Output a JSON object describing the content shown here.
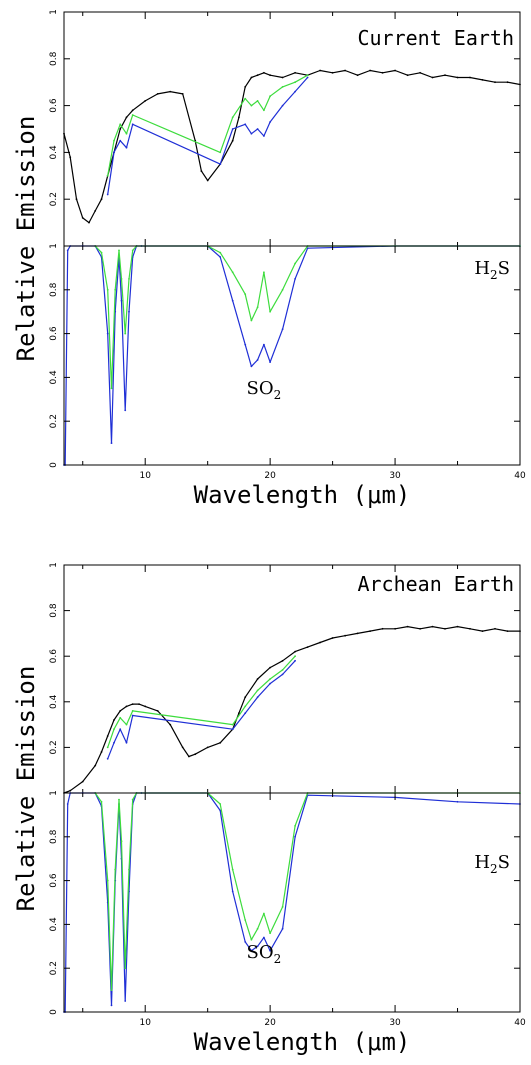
{
  "colors": {
    "black": "#000000",
    "blue": "#1f2fd6",
    "green": "#3ddc3d"
  },
  "chart_data": [
    {
      "type": "line",
      "title": "Current Earth",
      "panels": [
        {
          "role": "emission",
          "ylim": [
            0,
            1
          ],
          "yticks": [
            "0",
            "0.2",
            "0.4",
            "0.6",
            "0.8",
            "1"
          ],
          "series": [
            {
              "color": "black",
              "x": [
                3.5,
                4,
                4.5,
                5,
                5.5,
                6,
                6.5,
                7,
                7.5,
                8,
                8.5,
                9,
                10,
                11,
                12,
                13,
                14,
                14.5,
                15,
                16,
                17,
                17.5,
                18,
                18.5,
                19,
                19.5,
                20,
                21,
                22,
                23,
                24,
                25,
                26,
                27,
                28,
                29,
                30,
                31,
                32,
                33,
                34,
                35,
                36,
                37,
                38,
                39,
                40
              ],
              "y": [
                0.48,
                0.38,
                0.2,
                0.12,
                0.1,
                0.15,
                0.2,
                0.3,
                0.4,
                0.5,
                0.55,
                0.58,
                0.62,
                0.65,
                0.66,
                0.65,
                0.45,
                0.32,
                0.28,
                0.35,
                0.45,
                0.55,
                0.68,
                0.72,
                0.73,
                0.74,
                0.73,
                0.72,
                0.74,
                0.73,
                0.75,
                0.74,
                0.75,
                0.73,
                0.75,
                0.74,
                0.75,
                0.73,
                0.74,
                0.72,
                0.73,
                0.72,
                0.72,
                0.71,
                0.7,
                0.7,
                0.69
              ]
            },
            {
              "color": "green",
              "x": [
                7,
                7.5,
                8,
                8.5,
                9,
                16,
                17,
                18,
                18.5,
                19,
                19.5,
                20,
                21,
                22,
                23
              ],
              "y": [
                0.3,
                0.45,
                0.52,
                0.48,
                0.56,
                0.4,
                0.55,
                0.63,
                0.6,
                0.62,
                0.58,
                0.64,
                0.68,
                0.7,
                0.73
              ]
            },
            {
              "color": "blue",
              "x": [
                7,
                7.5,
                8,
                8.5,
                9,
                16,
                17,
                18,
                18.5,
                19,
                19.5,
                20,
                21,
                22,
                23
              ],
              "y": [
                0.22,
                0.4,
                0.45,
                0.42,
                0.52,
                0.35,
                0.5,
                0.52,
                0.48,
                0.5,
                0.47,
                0.53,
                0.6,
                0.66,
                0.72
              ]
            }
          ]
        },
        {
          "role": "transmission",
          "ylim": [
            0,
            1
          ],
          "yticks": [
            "0",
            "0.2",
            "0.4",
            "0.6",
            "0.8",
            "1"
          ],
          "series": [
            {
              "color": "blue",
              "x": [
                3.5,
                3.6,
                3.8,
                4,
                5,
                6,
                6.5,
                7,
                7.3,
                7.6,
                7.9,
                8.1,
                8.4,
                8.7,
                9,
                9.3,
                9.7,
                15,
                16,
                17,
                18,
                18.5,
                19,
                19.5,
                20,
                21,
                22,
                23,
                30,
                40
              ],
              "y": [
                0,
                0.0,
                0.98,
                1.0,
                1.0,
                1.0,
                0.95,
                0.6,
                0.1,
                0.7,
                0.95,
                0.75,
                0.25,
                0.7,
                0.95,
                1.0,
                1.0,
                1.0,
                0.95,
                0.75,
                0.55,
                0.45,
                0.48,
                0.55,
                0.47,
                0.62,
                0.85,
                0.99,
                1.0,
                1.0
              ]
            },
            {
              "color": "green",
              "x": [
                6,
                6.5,
                7,
                7.3,
                7.6,
                7.9,
                8.1,
                8.4,
                8.7,
                9,
                9.3,
                15,
                16,
                17,
                18,
                18.5,
                19,
                19.5,
                20,
                21,
                22,
                23,
                30,
                40
              ],
              "y": [
                1.0,
                0.97,
                0.8,
                0.35,
                0.8,
                0.98,
                0.85,
                0.6,
                0.85,
                0.98,
                1.0,
                1.0,
                0.97,
                0.88,
                0.78,
                0.66,
                0.72,
                0.88,
                0.7,
                0.8,
                0.92,
                1.0,
                1.0,
                1.0
              ]
            }
          ]
        }
      ],
      "labels": {
        "top_right": "Current Earth",
        "h2s": "H",
        "h2s_sub": "2",
        "h2s_tail": "S",
        "so2": "SO",
        "so2_sub": "2"
      },
      "xlabel": "Wavelength (μm)",
      "xticks": [
        "10",
        "20",
        "30",
        "40"
      ],
      "xlim": [
        3.5,
        40
      ]
    },
    {
      "type": "line",
      "title": "Archean Earth",
      "panels": [
        {
          "role": "emission",
          "ylim": [
            0,
            1
          ],
          "yticks": [
            "0",
            "0.2",
            "0.4",
            "0.6",
            "0.8",
            "1"
          ],
          "series": [
            {
              "color": "black",
              "x": [
                3.5,
                4,
                5,
                6,
                6.5,
                7,
                7.5,
                8,
                8.5,
                9,
                9.5,
                10,
                11,
                12,
                13,
                13.5,
                14,
                15,
                16,
                17,
                17.5,
                18,
                19,
                20,
                21,
                22,
                23,
                24,
                25,
                26,
                27,
                28,
                29,
                30,
                31,
                32,
                33,
                34,
                35,
                36,
                37,
                38,
                39,
                40
              ],
              "y": [
                0.0,
                0.01,
                0.05,
                0.12,
                0.18,
                0.25,
                0.32,
                0.36,
                0.38,
                0.39,
                0.39,
                0.38,
                0.36,
                0.3,
                0.2,
                0.16,
                0.17,
                0.2,
                0.22,
                0.28,
                0.35,
                0.42,
                0.5,
                0.55,
                0.58,
                0.62,
                0.64,
                0.66,
                0.68,
                0.69,
                0.7,
                0.71,
                0.72,
                0.72,
                0.73,
                0.72,
                0.73,
                0.72,
                0.73,
                0.72,
                0.71,
                0.72,
                0.71,
                0.71
              ]
            },
            {
              "color": "green",
              "x": [
                7,
                7.5,
                8,
                8.5,
                9,
                17,
                18,
                19,
                20,
                21,
                22
              ],
              "y": [
                0.2,
                0.28,
                0.33,
                0.3,
                0.36,
                0.3,
                0.38,
                0.45,
                0.5,
                0.54,
                0.6
              ]
            },
            {
              "color": "blue",
              "x": [
                7,
                7.5,
                8,
                8.5,
                9,
                17,
                18,
                19,
                20,
                21,
                22
              ],
              "y": [
                0.15,
                0.22,
                0.28,
                0.22,
                0.34,
                0.28,
                0.35,
                0.42,
                0.48,
                0.52,
                0.58
              ]
            }
          ]
        },
        {
          "role": "transmission",
          "ylim": [
            0,
            1
          ],
          "yticks": [
            "0",
            "0.2",
            "0.4",
            "0.6",
            "0.8",
            "1"
          ],
          "series": [
            {
              "color": "blue",
              "x": [
                3.5,
                3.6,
                3.8,
                4,
                5,
                6,
                6.5,
                7,
                7.3,
                7.6,
                7.9,
                8.1,
                8.4,
                8.7,
                9,
                9.3,
                9.7,
                15,
                16,
                17,
                18,
                18.5,
                19,
                19.5,
                20,
                21,
                22,
                23,
                30,
                35,
                40
              ],
              "y": [
                0,
                0.0,
                0.95,
                1.0,
                1.0,
                1.0,
                0.94,
                0.5,
                0.03,
                0.6,
                0.95,
                0.7,
                0.05,
                0.55,
                0.95,
                1.0,
                1.0,
                1.0,
                0.92,
                0.55,
                0.32,
                0.28,
                0.3,
                0.34,
                0.28,
                0.38,
                0.8,
                0.99,
                0.98,
                0.96,
                0.95
              ]
            },
            {
              "color": "green",
              "x": [
                6,
                6.5,
                7,
                7.3,
                7.6,
                7.9,
                8.1,
                8.4,
                8.7,
                9,
                9.3,
                15,
                16,
                17,
                18,
                18.5,
                19,
                19.5,
                20,
                21,
                22,
                23,
                30,
                40
              ],
              "y": [
                1.0,
                0.96,
                0.6,
                0.1,
                0.65,
                0.97,
                0.78,
                0.2,
                0.65,
                0.97,
                1.0,
                1.0,
                0.95,
                0.65,
                0.42,
                0.33,
                0.38,
                0.45,
                0.36,
                0.48,
                0.85,
                1.0,
                1.0,
                1.0
              ]
            }
          ]
        }
      ],
      "labels": {
        "top_right": "Archean Earth",
        "h2s": "H",
        "h2s_sub": "2",
        "h2s_tail": "S",
        "so2": "SO",
        "so2_sub": "2"
      },
      "xlabel": "Wavelength (μm)",
      "xticks": [
        "10",
        "20",
        "30",
        "40"
      ],
      "xlim": [
        3.5,
        40
      ]
    }
  ],
  "ylabel": "Relative    Emission"
}
